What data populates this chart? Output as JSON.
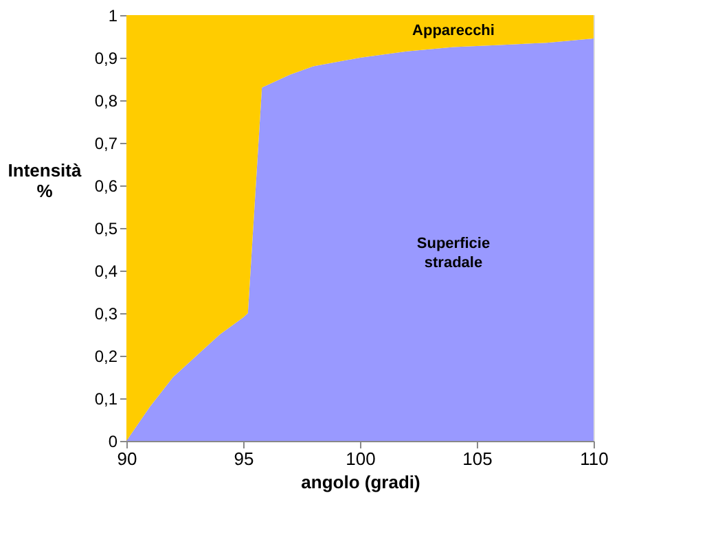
{
  "chart_data": {
    "type": "area",
    "stacked": true,
    "xlabel": "angolo (gradi)",
    "ylabel": "Intensità\n%",
    "x": [
      90,
      91,
      92,
      93,
      94,
      95,
      95.2,
      95.8,
      97,
      98,
      100,
      102,
      104,
      106,
      108,
      110
    ],
    "series": [
      {
        "name": "Superficie stradale",
        "color": "#9999ff",
        "values": [
          0,
          0.08,
          0.15,
          0.2,
          0.25,
          0.29,
          0.3,
          0.83,
          0.86,
          0.88,
          0.9,
          0.915,
          0.925,
          0.93,
          0.935,
          0.945
        ]
      },
      {
        "name": "Apparecchi",
        "color": "#ffcc00",
        "values": [
          1,
          0.92,
          0.85,
          0.8,
          0.75,
          0.71,
          0.7,
          0.17,
          0.14,
          0.12,
          0.1,
          0.085,
          0.075,
          0.07,
          0.065,
          0.055
        ]
      }
    ],
    "xlim": [
      90,
      110
    ],
    "xticks": [
      90,
      95,
      100,
      105,
      110
    ],
    "ylim": [
      0,
      1
    ],
    "yticks": [
      0,
      {
        "value": 0.1,
        "label": "0,1"
      },
      {
        "value": 0.2,
        "label": "0,2"
      },
      {
        "value": 0.3,
        "label": "0,3"
      },
      {
        "value": 0.4,
        "label": "0,4"
      },
      {
        "value": 0.5,
        "label": "0,5"
      },
      {
        "value": 0.6,
        "label": "0,6"
      },
      {
        "value": 0.7,
        "label": "0,7"
      },
      {
        "value": 0.8,
        "label": "0,8"
      },
      {
        "value": 0.9,
        "label": "0,9"
      },
      1
    ],
    "grid": false,
    "legend": false
  }
}
